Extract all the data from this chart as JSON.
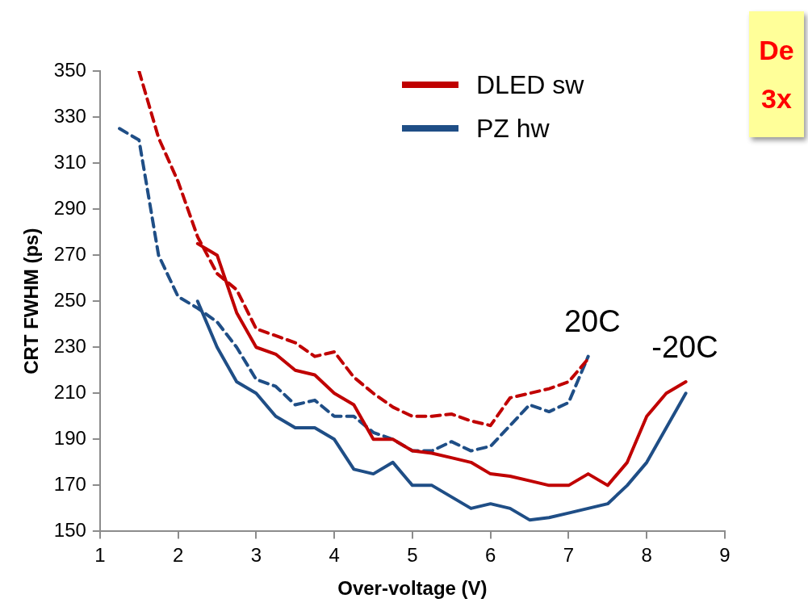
{
  "chart_data": {
    "type": "line",
    "xlabel": "Over-voltage (V)",
    "ylabel": "CRT FWHM (ps)",
    "xlim": [
      1,
      9
    ],
    "xticks": [
      1,
      2,
      3,
      4,
      5,
      6,
      7,
      8,
      9
    ],
    "ylim": [
      150,
      350
    ],
    "yticks": [
      150,
      170,
      190,
      210,
      230,
      250,
      270,
      290,
      310,
      330,
      350
    ],
    "legend": "top right",
    "marker": "none",
    "series": [
      {
        "name": "DLED sw",
        "color": "#c00000",
        "line_style": "solid",
        "x": [
          2.25,
          2.5,
          2.75,
          3,
          3.25,
          3.5,
          3.75,
          4,
          4.25,
          4.5,
          4.75,
          5,
          5.25,
          5.5,
          5.75,
          6,
          6.25,
          6.5,
          6.75,
          7,
          7.25,
          7.5,
          7.75,
          8,
          8.25,
          8.5
        ],
        "values": [
          275,
          270,
          245,
          230,
          227,
          220,
          218,
          210,
          205,
          190,
          190,
          185,
          184,
          182,
          180,
          175,
          174,
          172,
          170,
          170,
          175,
          170,
          180,
          200,
          210,
          215
        ]
      },
      {
        "name": "PZ hw",
        "color": "#1f4e86",
        "line_style": "solid",
        "x": [
          2.25,
          2.5,
          2.75,
          3,
          3.25,
          3.5,
          3.75,
          4,
          4.25,
          4.5,
          4.75,
          5,
          5.25,
          5.5,
          5.75,
          6,
          6.25,
          6.5,
          6.75,
          7,
          7.25,
          7.5,
          7.75,
          8,
          8.25,
          8.5
        ],
        "values": [
          250,
          230,
          215,
          210,
          200,
          195,
          195,
          190,
          177,
          175,
          180,
          170,
          170,
          165,
          160,
          162,
          160,
          155,
          156,
          158,
          160,
          162,
          170,
          180,
          195,
          210
        ]
      },
      {
        "color": "#c00000",
        "line_style": "dashed",
        "x": [
          1.5,
          1.75,
          2,
          2.25,
          2.5,
          2.75,
          3,
          3.25,
          3.5,
          3.75,
          4,
          4.25,
          4.5,
          4.75,
          5,
          5.25,
          5.5,
          5.75,
          6,
          6.25,
          6.5,
          6.75,
          7,
          7.25
        ],
        "values": [
          350,
          321,
          302,
          278,
          262,
          255,
          238,
          235,
          232,
          226,
          228,
          217,
          210,
          204,
          200,
          200,
          201,
          198,
          196,
          208,
          210,
          212,
          215,
          225
        ]
      },
      {
        "color": "#1f4e86",
        "line_style": "dashed",
        "x": [
          1.25,
          1.5,
          1.75,
          2,
          2.25,
          2.5,
          2.75,
          3,
          3.25,
          3.5,
          3.75,
          4,
          4.25,
          4.5,
          4.75,
          5,
          5.25,
          5.5,
          5.75,
          6,
          6.25,
          6.5,
          6.75,
          7,
          7.25
        ],
        "values": [
          325,
          320,
          270,
          252,
          247,
          241,
          230,
          216,
          213,
          205,
          207,
          200,
          200,
          193,
          190,
          185,
          185,
          189,
          185,
          187,
          196,
          205,
          202,
          206,
          226
        ]
      }
    ],
    "annotations": [
      {
        "text": "20C",
        "x": 7.25,
        "y": 226
      },
      {
        "text": "-20C",
        "x": 8.5,
        "y": 215
      },
      "De",
      "3x"
    ]
  }
}
